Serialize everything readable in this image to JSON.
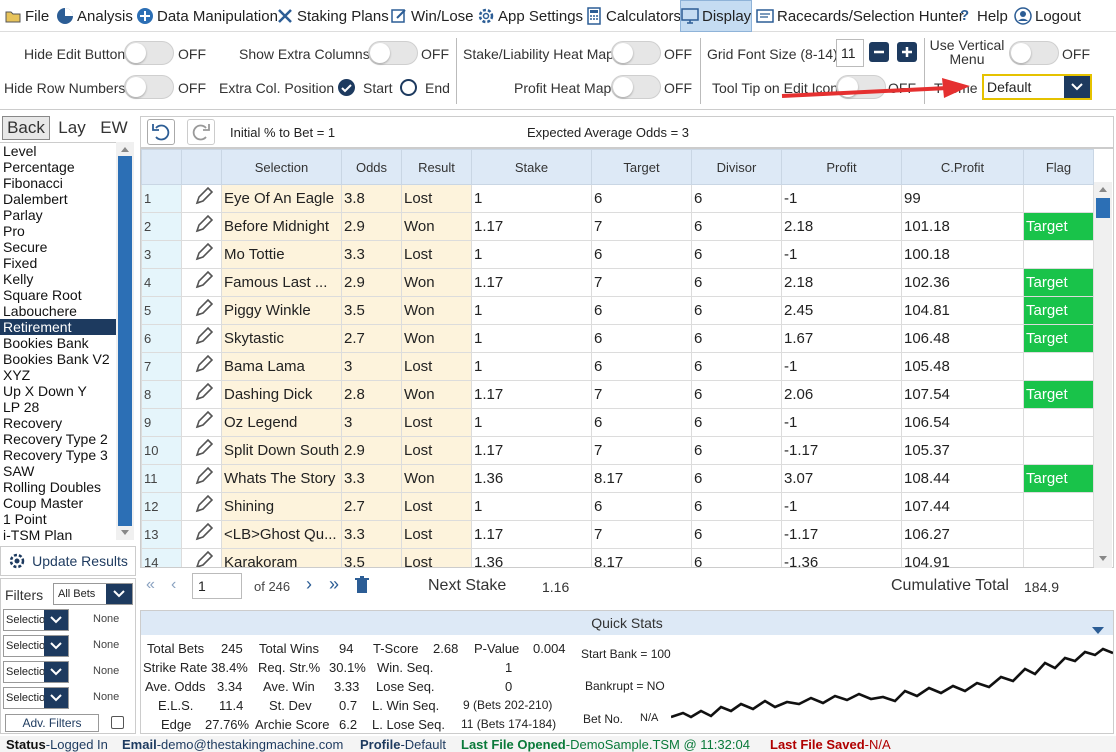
{
  "menu": [
    {
      "label": "File",
      "icon": "folder-icon"
    },
    {
      "label": "Analysis",
      "icon": "pie-chart-icon"
    },
    {
      "label": "Data Manipulation",
      "icon": "plus-circle-icon"
    },
    {
      "label": "Staking Plans",
      "icon": "tools-icon"
    },
    {
      "label": "Win/Lose",
      "icon": "edit-icon"
    },
    {
      "label": "App Settings",
      "icon": "gear-icon"
    },
    {
      "label": "Calculators",
      "icon": "calculator-icon"
    },
    {
      "label": "Display",
      "icon": "monitor-icon"
    },
    {
      "label": "Racecards/Selection Hunter",
      "icon": "card-icon"
    },
    {
      "label": "Help",
      "icon": "question-icon"
    },
    {
      "label": "Logout",
      "icon": "user-icon"
    }
  ],
  "options": {
    "hide_edit_button": "Hide Edit Button",
    "hide_row_numbers": "Hide Row Numbers",
    "show_extra_columns": "Show Extra Columns",
    "extra_col_position": "Extra Col. Position",
    "start": "Start",
    "end": "End",
    "stake_heat_map": "Stake/Liability Heat Map",
    "profit_heat_map": "Profit Heat Map",
    "grid_font_size": "Grid Font Size (8-14)",
    "grid_font_value": "11",
    "tool_tip": "Tool Tip on Edit Icon",
    "use_vertical_menu": "Use Vertical Menu",
    "theme": "Theme",
    "theme_value": "Default",
    "off": "OFF"
  },
  "mode_tabs": [
    "Back",
    "Lay",
    "EW"
  ],
  "strategies": [
    "Level",
    "Percentage",
    "Fibonacci",
    "Dalembert",
    "Parlay",
    "Pro",
    "Secure",
    "Fixed",
    "Kelly",
    "Square Root",
    "Labouchere",
    "Retirement",
    "Bookies Bank",
    "Bookies Bank V2",
    "XYZ",
    "Up X Down Y",
    "LP 28",
    "Recovery",
    "Recovery Type 2",
    "Recovery Type 3",
    "SAW",
    "Rolling Doubles",
    "Coup Master",
    "1 Point",
    "i-TSM Plan"
  ],
  "selected_strategy": "Retirement",
  "toolbar": {
    "initial": "Initial % to Bet = 1",
    "expected": "Expected Average Odds = 3"
  },
  "columns": [
    "Selection",
    "Odds",
    "Result",
    "Stake",
    "Target",
    "Divisor",
    "Profit",
    "C.Profit",
    "Flag"
  ],
  "rows": [
    [
      "1",
      "Eye Of An Eagle",
      "3.8",
      "Lost",
      "1",
      "6",
      "6",
      "-1",
      "99",
      ""
    ],
    [
      "2",
      "Before Midnight",
      "2.9",
      "Won",
      "1.17",
      "7",
      "6",
      "2.18",
      "101.18",
      "Target"
    ],
    [
      "3",
      "Mo Tottie",
      "3.3",
      "Lost",
      "1",
      "6",
      "6",
      "-1",
      "100.18",
      ""
    ],
    [
      "4",
      "Famous Last ...",
      "2.9",
      "Won",
      "1.17",
      "7",
      "6",
      "2.18",
      "102.36",
      "Target"
    ],
    [
      "5",
      "Piggy Winkle",
      "3.5",
      "Won",
      "1",
      "6",
      "6",
      "2.45",
      "104.81",
      "Target"
    ],
    [
      "6",
      "Skytastic",
      "2.7",
      "Won",
      "1",
      "6",
      "6",
      "1.67",
      "106.48",
      "Target"
    ],
    [
      "7",
      "Bama Lama",
      "3",
      "Lost",
      "1",
      "6",
      "6",
      "-1",
      "105.48",
      ""
    ],
    [
      "8",
      "Dashing Dick",
      "2.8",
      "Won",
      "1.17",
      "7",
      "6",
      "2.06",
      "107.54",
      "Target"
    ],
    [
      "9",
      "Oz Legend",
      "3",
      "Lost",
      "1",
      "6",
      "6",
      "-1",
      "106.54",
      ""
    ],
    [
      "10",
      "Split Down South",
      "2.9",
      "Lost",
      "1.17",
      "7",
      "6",
      "-1.17",
      "105.37",
      ""
    ],
    [
      "11",
      "Whats The Story",
      "3.3",
      "Won",
      "1.36",
      "8.17",
      "6",
      "3.07",
      "108.44",
      "Target"
    ],
    [
      "12",
      "Shining",
      "2.7",
      "Lost",
      "1",
      "6",
      "6",
      "-1",
      "107.44",
      ""
    ],
    [
      "13",
      "<LB>Ghost Qu...",
      "3.3",
      "Lost",
      "1.17",
      "7",
      "6",
      "-1.17",
      "106.27",
      ""
    ],
    [
      "14",
      "Karakoram",
      "3.5",
      "Lost",
      "1.36",
      "8.17",
      "6",
      "-1.36",
      "104.91",
      ""
    ]
  ],
  "pager": {
    "page": "1",
    "of": "of 246",
    "next_stake_label": "Next Stake",
    "next_stake": "1.16",
    "cum_label": "Cumulative Total",
    "cum_value": "184.9"
  },
  "update_results": "Update Results",
  "filters": {
    "label": "Filters",
    "all_bets": "All Bets",
    "rows": [
      {
        "sel": "Selectio",
        "val": "None"
      },
      {
        "sel": "Selectio",
        "val": "None"
      },
      {
        "sel": "Selectio",
        "val": "None"
      },
      {
        "sel": "Selectio",
        "val": "None"
      }
    ],
    "adv": "Adv. Filters"
  },
  "quick_stats": {
    "title": "Quick Stats",
    "total_bets_l": "Total Bets",
    "total_bets": "245",
    "total_wins_l": "Total Wins",
    "total_wins": "94",
    "tscore_l": "T-Score",
    "tscore": "2.68",
    "pvalue_l": "P-Value",
    "pvalue": "0.004",
    "strike_l": "Strike Rate",
    "strike": "38.4%",
    "req_l": "Req. Str.%",
    "req": "30.1%",
    "winseq_l": "Win. Seq.",
    "winseq": "1",
    "aveodds_l": "Ave. Odds",
    "aveodds": "3.34",
    "avewin_l": "Ave. Win",
    "avewin": "3.33",
    "loseseq_l": "Lose Seq.",
    "loseseq": "0",
    "els_l": "E.L.S.",
    "els": "11.4",
    "stdev_l": "St. Dev",
    "stdev": "0.7",
    "lwin_l": "L. Win Seq.",
    "lwin": "9 (Bets 202-210)",
    "edge_l": "Edge",
    "edge": "27.76%",
    "archie_l": "Archie Score",
    "archie": "6.2",
    "llose_l": "L. Lose Seq.",
    "llose": "11 (Bets 174-184)",
    "startbank": "Start Bank = 100",
    "bankrupt": "Bankrupt = NO",
    "betno_l": "Bet No.",
    "betno": "N/A"
  },
  "status": {
    "s1k": "Status",
    "s1v": "-Logged In",
    "s2k": "Email",
    "s2v": "-demo@thestakingmachine.com",
    "s3k": "Profile",
    "s3v": "-Default",
    "s4k": "Last File Opened",
    "s4v": "-DemoSample.TSM @ 11:32:04",
    "s5k": "Last File Saved",
    "s5v": "-N/A"
  },
  "colors": {
    "accent": "#1d3a5f",
    "target": "#19c34a",
    "arrow": "#e53030",
    "header": "#dde9f6",
    "status_green": "#0a7a3a",
    "status_red": "#b00000"
  }
}
